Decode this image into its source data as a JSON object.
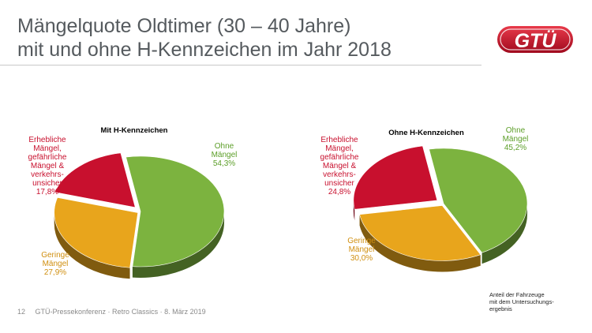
{
  "header": {
    "title_line1": "Mängelquote Oldtimer (30 – 40 Jahre)",
    "title_line2": "mit und ohne H-Kennzeichen im Jahr 2018",
    "logo_text": "GTÜ"
  },
  "footer": {
    "page_number": "12",
    "event": "GTÜ-Pressekonferenz · Retro Classics · 8. März 2019"
  },
  "note": {
    "line1": "Anteil der Fahrzeuge",
    "line2": "mit dem Untersuchungs-",
    "line3": "ergebnis"
  },
  "colors": {
    "green": "#7cb33f",
    "orange": "#e8a51c",
    "red": "#c8102e",
    "title": "#555a5e",
    "label_green": "#5c9e28",
    "label_orange": "#d08f10",
    "label_red": "#c8102e"
  },
  "chart_data": [
    {
      "type": "pie",
      "title": "Mit H-Kennzeichen",
      "unit": "%",
      "slices": [
        {
          "key": "ohne",
          "label_lines": [
            "Ohne",
            "Mängel"
          ],
          "value": 54.3,
          "value_text": "54,3%"
        },
        {
          "key": "geringe",
          "label_lines": [
            "Geringe",
            "Mängel"
          ],
          "value": 27.9,
          "value_text": "27,9%"
        },
        {
          "key": "erheblich",
          "label_lines": [
            "Erhebliche",
            "Mängel,",
            "gefährliche",
            "Mängel &",
            "verkehrs-",
            "unsicher"
          ],
          "value": 17.8,
          "value_text": "17,8%"
        }
      ]
    },
    {
      "type": "pie",
      "title": "Ohne H-Kennzeichen",
      "unit": "%",
      "slices": [
        {
          "key": "ohne",
          "label_lines": [
            "Ohne",
            "Mängel"
          ],
          "value": 45.2,
          "value_text": "45,2%"
        },
        {
          "key": "geringe",
          "label_lines": [
            "Geringe",
            "Mängel"
          ],
          "value": 30.0,
          "value_text": "30,0%"
        },
        {
          "key": "erheblich",
          "label_lines": [
            "Erhebliche",
            "Mängel,",
            "gefährliche",
            "Mängel &",
            "verkehrs-",
            "unsicher"
          ],
          "value": 24.8,
          "value_text": "24,8%"
        }
      ]
    }
  ]
}
